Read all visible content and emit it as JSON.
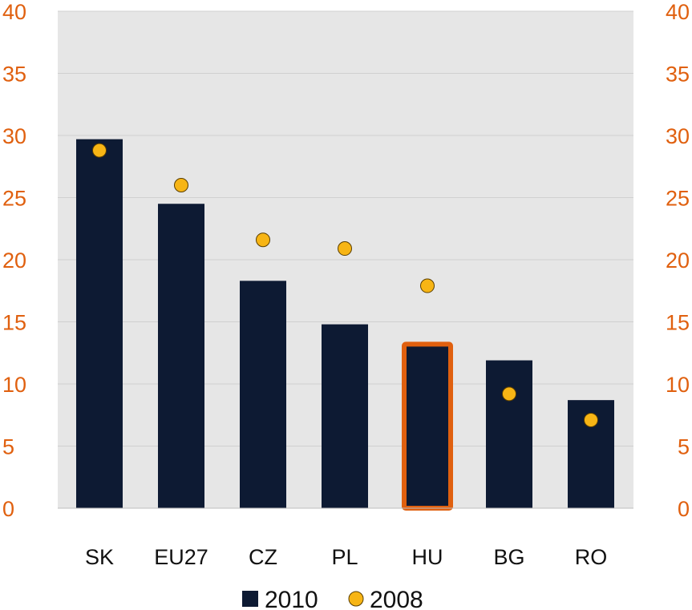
{
  "chart_data": {
    "type": "bar",
    "categories": [
      "SK",
      "EU27",
      "CZ",
      "PL",
      "HU",
      "BG",
      "RO"
    ],
    "highlight_category": "HU",
    "series": [
      {
        "name": "2010",
        "kind": "bar",
        "values": [
          29.7,
          24.5,
          18.3,
          14.8,
          13.2,
          11.9,
          8.7
        ]
      },
      {
        "name": "2008",
        "kind": "marker",
        "values": [
          28.8,
          26.0,
          21.6,
          20.9,
          17.9,
          9.2,
          7.1
        ]
      }
    ],
    "ylim": [
      0,
      40
    ],
    "yticks": [
      0,
      5,
      10,
      15,
      20,
      25,
      30,
      35,
      40
    ],
    "left_ticks": [
      "0",
      "5",
      "10",
      "15",
      "20",
      "25",
      "30",
      "35",
      "40"
    ],
    "right_ticks": [
      "0",
      "5",
      "10",
      "15",
      "20",
      "25",
      "30",
      "35",
      "40"
    ],
    "grid": true,
    "legend": {
      "position": "bottom",
      "items": [
        {
          "label": "2010",
          "marker": "square"
        },
        {
          "label": "2008",
          "marker": "circle"
        }
      ]
    }
  },
  "colors": {
    "bar": "#0d1a33",
    "highlight_outline": "#e0600f",
    "marker": "#f7b515",
    "marker_outline": "#5a3e00",
    "plot_background": "#e6e6e6",
    "grid": "#d0d0d0",
    "tick_text": "#e0600f"
  }
}
